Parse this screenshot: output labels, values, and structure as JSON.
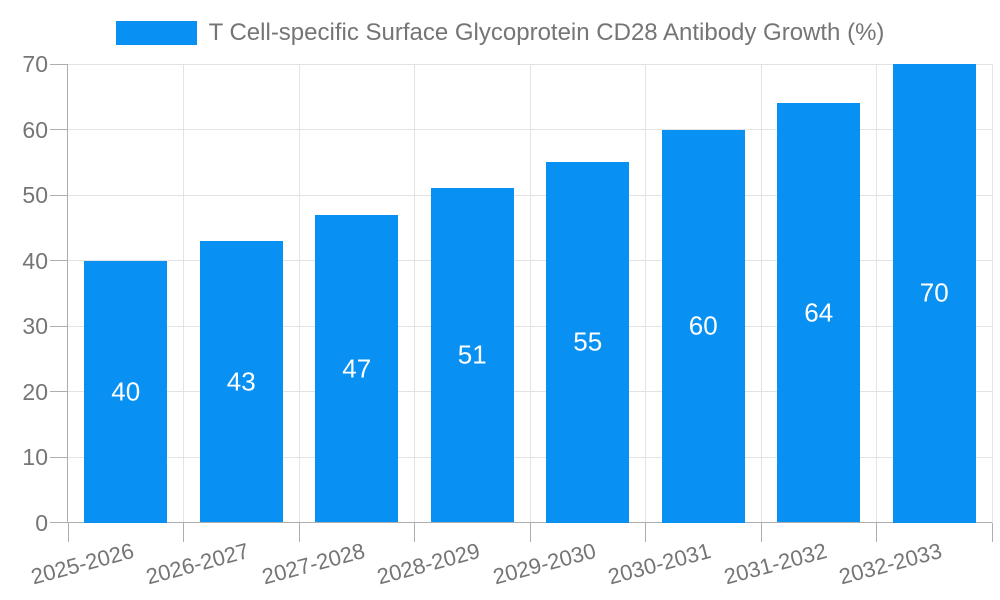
{
  "legend": {
    "label": "T Cell-specific Surface Glycoprotein CD28 Antibody Growth (%)"
  },
  "chart_data": {
    "type": "bar",
    "title": "",
    "series_name": "T Cell-specific Surface Glycoprotein CD28 Antibody Growth (%)",
    "categories": [
      "2025-2026",
      "2026-2027",
      "2027-2028",
      "2028-2029",
      "2029-2030",
      "2030-2031",
      "2031-2032",
      "2032-2033"
    ],
    "values": [
      40,
      43,
      47,
      51,
      55,
      60,
      64,
      70
    ],
    "xlabel": "",
    "ylabel": "",
    "ylim": [
      0,
      70
    ],
    "yticks": [
      0,
      10,
      20,
      30,
      40,
      50,
      60,
      70
    ],
    "grid": true,
    "legend_position": "top",
    "colors": {
      "bar": "#0890F2",
      "grid": "#e3e3e3",
      "axis": "#adadad",
      "tick_text": "#757575",
      "value_label": "#ffffff",
      "background": "#ffffff"
    }
  }
}
